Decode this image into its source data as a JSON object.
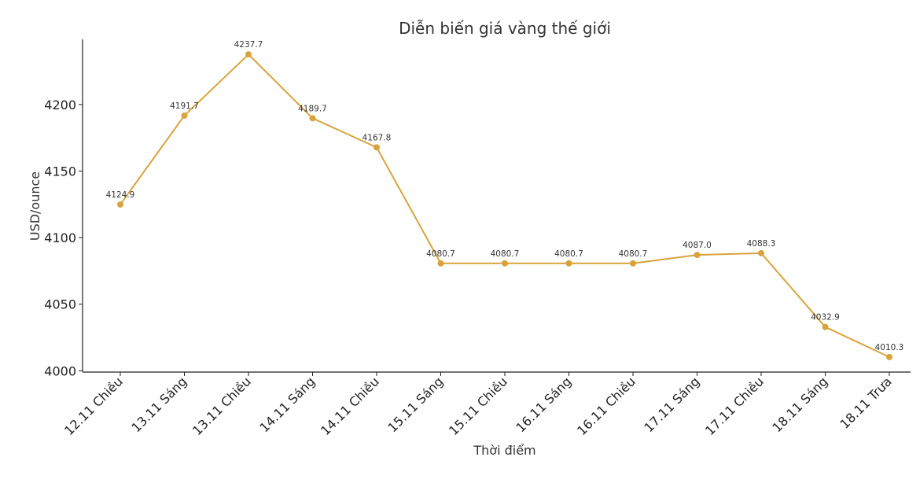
{
  "chart_data": {
    "type": "line",
    "title": "Diễn biến giá vàng thế giới",
    "xlabel": "Thời điểm",
    "ylabel": "USD/ounce",
    "categories": [
      "12.11 Chiều",
      "13.11 Sáng",
      "13.11 Chiều",
      "14.11 Sáng",
      "14.11 Chiều",
      "15.11 Sáng",
      "15.11 Chiều",
      "16.11 Sáng",
      "16.11 Chiều",
      "17.11 Sáng",
      "17.11 Chiều",
      "18.11 Sáng",
      "18.11 Trưa"
    ],
    "values": [
      4124.9,
      4191.7,
      4237.7,
      4189.7,
      4167.8,
      4080.7,
      4080.7,
      4080.7,
      4080.7,
      4087.0,
      4088.3,
      4032.9,
      4010.3
    ],
    "data_labels": [
      "4124.9",
      "4191.7",
      "4237.7",
      "4189.7",
      "4167.8",
      "4080.7",
      "4080.7",
      "4080.7",
      "4080.7",
      "4087.0",
      "4088.3",
      "4032.9",
      "4010.3"
    ],
    "yticks": [
      "4000",
      "4050",
      "4100",
      "4150",
      "4200"
    ],
    "ylim": [
      3999,
      4249
    ],
    "grid": false,
    "line_color": "#d9a33b"
  }
}
